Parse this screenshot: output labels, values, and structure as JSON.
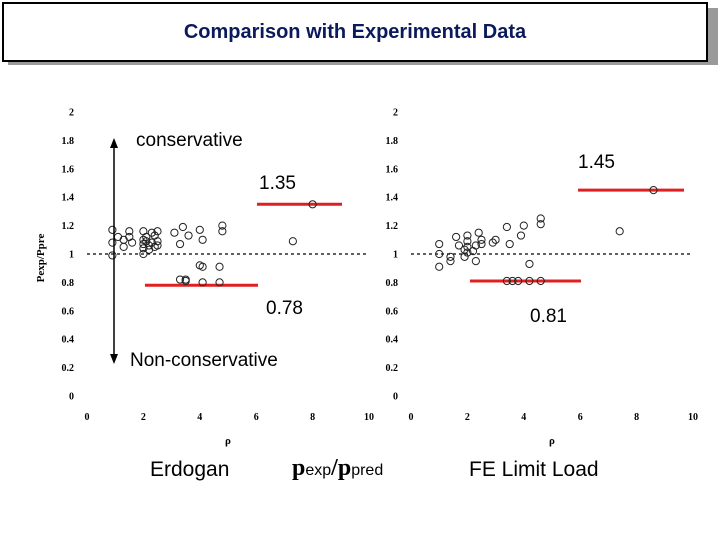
{
  "title": "Comparison with Experimental Data",
  "colors": {
    "title_text": "#0a1a5c",
    "marker_line": "#e02020",
    "title_shadow": "#9a9a9a"
  },
  "annotations": {
    "conservative": "conservative",
    "non_conservative": "Non-conservative",
    "left_upper": "1.35",
    "left_lower": "0.78",
    "right_upper": "1.45",
    "right_lower": "0.81"
  },
  "footer": {
    "left_label": "Erdogan",
    "ratio_num": "p",
    "ratio_num_sub": "exp",
    "ratio_slash": "/",
    "ratio_den": "p",
    "ratio_den_sub": "pred",
    "right_label": "FE Limit Load"
  },
  "chart_data": [
    {
      "type": "scatter",
      "xlabel": "ρ",
      "ylabel": "Pexp/Ppre",
      "xlim": [
        0,
        10
      ],
      "ylim": [
        0,
        2
      ],
      "xticks": [
        0,
        2,
        4,
        6,
        8,
        10
      ],
      "yticks": [
        0,
        0.2,
        0.4,
        0.6,
        0.8,
        1,
        1.2,
        1.4,
        1.6,
        1.8,
        2
      ],
      "reference_line": 1,
      "bounds": {
        "upper": 1.35,
        "lower": 0.78
      },
      "points": [
        [
          0.9,
          1.17
        ],
        [
          0.9,
          1.08
        ],
        [
          0.9,
          0.99
        ],
        [
          1.1,
          1.12
        ],
        [
          1.3,
          1.1
        ],
        [
          1.3,
          1.05
        ],
        [
          1.5,
          1.12
        ],
        [
          1.5,
          1.16
        ],
        [
          1.6,
          1.08
        ],
        [
          2.0,
          1.16
        ],
        [
          2.0,
          1.1
        ],
        [
          2.0,
          1.07
        ],
        [
          2.0,
          1.04
        ],
        [
          2.0,
          1.0
        ],
        [
          2.1,
          1.12
        ],
        [
          2.1,
          1.09
        ],
        [
          2.2,
          1.06
        ],
        [
          2.2,
          1.03
        ],
        [
          2.3,
          1.15
        ],
        [
          2.3,
          1.08
        ],
        [
          2.4,
          1.05
        ],
        [
          2.4,
          1.13
        ],
        [
          2.5,
          1.16
        ],
        [
          2.5,
          1.09
        ],
        [
          2.5,
          1.06
        ],
        [
          3.1,
          1.15
        ],
        [
          3.3,
          1.07
        ],
        [
          3.4,
          1.19
        ],
        [
          3.6,
          1.13
        ],
        [
          4.0,
          1.17
        ],
        [
          4.1,
          1.1
        ],
        [
          4.8,
          1.2
        ],
        [
          4.8,
          1.16
        ],
        [
          3.3,
          0.82
        ],
        [
          3.5,
          0.82
        ],
        [
          3.5,
          0.81
        ],
        [
          4.0,
          0.92
        ],
        [
          4.1,
          0.91
        ],
        [
          4.1,
          0.8
        ],
        [
          4.7,
          0.91
        ],
        [
          4.7,
          0.8
        ],
        [
          7.3,
          1.09
        ],
        [
          8.0,
          1.35
        ]
      ]
    },
    {
      "type": "scatter",
      "xlabel": "ρ",
      "ylabel": "",
      "xlim": [
        0,
        10
      ],
      "ylim": [
        0,
        2
      ],
      "xticks": [
        0,
        2,
        4,
        6,
        8,
        10
      ],
      "yticks": [
        0,
        0.2,
        0.4,
        0.6,
        0.8,
        1,
        1.2,
        1.4,
        1.6,
        1.8,
        2
      ],
      "reference_line": 1,
      "bounds": {
        "upper": 1.45,
        "lower": 0.81
      },
      "points": [
        [
          1.0,
          1.07
        ],
        [
          1.0,
          1.0
        ],
        [
          1.0,
          0.91
        ],
        [
          1.4,
          0.98
        ],
        [
          1.4,
          0.95
        ],
        [
          1.6,
          1.12
        ],
        [
          1.7,
          1.06
        ],
        [
          1.9,
          1.03
        ],
        [
          1.9,
          0.98
        ],
        [
          2.0,
          1.13
        ],
        [
          2.0,
          1.09
        ],
        [
          2.0,
          1.05
        ],
        [
          2.0,
          1.01
        ],
        [
          2.2,
          1.02
        ],
        [
          2.3,
          1.06
        ],
        [
          2.3,
          0.95
        ],
        [
          2.4,
          1.15
        ],
        [
          2.5,
          1.1
        ],
        [
          2.5,
          1.07
        ],
        [
          2.9,
          1.08
        ],
        [
          3.0,
          1.1
        ],
        [
          3.4,
          1.19
        ],
        [
          3.5,
          1.07
        ],
        [
          3.9,
          1.13
        ],
        [
          4.0,
          1.2
        ],
        [
          4.6,
          1.25
        ],
        [
          4.6,
          1.21
        ],
        [
          3.4,
          0.81
        ],
        [
          3.6,
          0.81
        ],
        [
          3.8,
          0.81
        ],
        [
          4.2,
          0.93
        ],
        [
          4.2,
          0.81
        ],
        [
          4.6,
          0.81
        ],
        [
          7.4,
          1.16
        ],
        [
          8.6,
          1.45
        ]
      ]
    }
  ]
}
